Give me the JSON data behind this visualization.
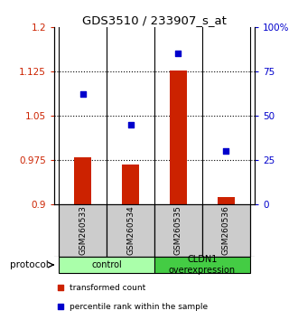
{
  "title": "GDS3510 / 233907_s_at",
  "categories": [
    "GSM260533",
    "GSM260534",
    "GSM260535",
    "GSM260536"
  ],
  "bar_values": [
    0.979,
    0.967,
    1.127,
    0.912
  ],
  "bar_base": 0.9,
  "scatter_values": [
    62,
    45,
    85,
    30
  ],
  "ylim_left": [
    0.9,
    1.2
  ],
  "ylim_right": [
    0,
    100
  ],
  "yticks_left": [
    0.9,
    0.975,
    1.05,
    1.125,
    1.2
  ],
  "ytick_labels_left": [
    "0.9",
    "0.975",
    "1.05",
    "1.125",
    "1.2"
  ],
  "yticks_right": [
    0,
    25,
    50,
    75,
    100
  ],
  "ytick_labels_right": [
    "0",
    "25",
    "50",
    "75",
    "100%"
  ],
  "dotted_lines": [
    0.975,
    1.05,
    1.125
  ],
  "bar_color": "#cc2200",
  "scatter_color": "#0000cc",
  "groups": [
    {
      "label": "control",
      "indices": [
        0,
        1
      ],
      "color": "#aaffaa"
    },
    {
      "label": "CLDN1\noverexpression",
      "indices": [
        2,
        3
      ],
      "color": "#44cc44"
    }
  ],
  "protocol_label": "protocol",
  "legend_bar_label": "transformed count",
  "legend_scatter_label": "percentile rank within the sample",
  "bar_width": 0.35,
  "tick_color_left": "#cc2200",
  "tick_color_right": "#0000cc",
  "xticklabel_bg": "#cccccc",
  "fig_width": 3.3,
  "fig_height": 3.54
}
